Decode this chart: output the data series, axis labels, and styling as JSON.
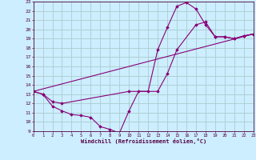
{
  "xlabel": "Windchill (Refroidissement éolien,°C)",
  "bg_color": "#cceeff",
  "grid_color": "#aacccc",
  "line_color": "#880077",
  "xlim": [
    0,
    23
  ],
  "ylim": [
    9,
    23
  ],
  "xticks": [
    0,
    1,
    2,
    3,
    4,
    5,
    6,
    7,
    8,
    9,
    10,
    11,
    12,
    13,
    14,
    15,
    16,
    17,
    18,
    19,
    20,
    21,
    22,
    23
  ],
  "yticks": [
    9,
    10,
    11,
    12,
    13,
    14,
    15,
    16,
    17,
    18,
    19,
    20,
    21,
    22,
    23
  ],
  "curve1_x": [
    0,
    1,
    2,
    3,
    4,
    5,
    6,
    7,
    8,
    9,
    10,
    11,
    12,
    13,
    14,
    15,
    16,
    17,
    18,
    19,
    20,
    21,
    22,
    23
  ],
  "curve1_y": [
    13.3,
    13.0,
    11.7,
    11.2,
    10.8,
    10.7,
    10.5,
    9.5,
    9.2,
    8.8,
    11.2,
    13.3,
    13.3,
    17.8,
    20.2,
    22.5,
    22.9,
    22.2,
    20.5,
    19.2,
    19.2,
    19.0,
    19.3,
    19.5
  ],
  "curve2_x": [
    0,
    1,
    2,
    3,
    10,
    13,
    14,
    15,
    17,
    18,
    19,
    20,
    21,
    22,
    23
  ],
  "curve2_y": [
    13.3,
    13.0,
    12.2,
    12.0,
    13.3,
    13.3,
    15.2,
    17.8,
    20.5,
    20.8,
    19.2,
    19.2,
    19.0,
    19.3,
    19.5
  ],
  "curve3_x": [
    0,
    23
  ],
  "curve3_y": [
    13.3,
    19.5
  ]
}
